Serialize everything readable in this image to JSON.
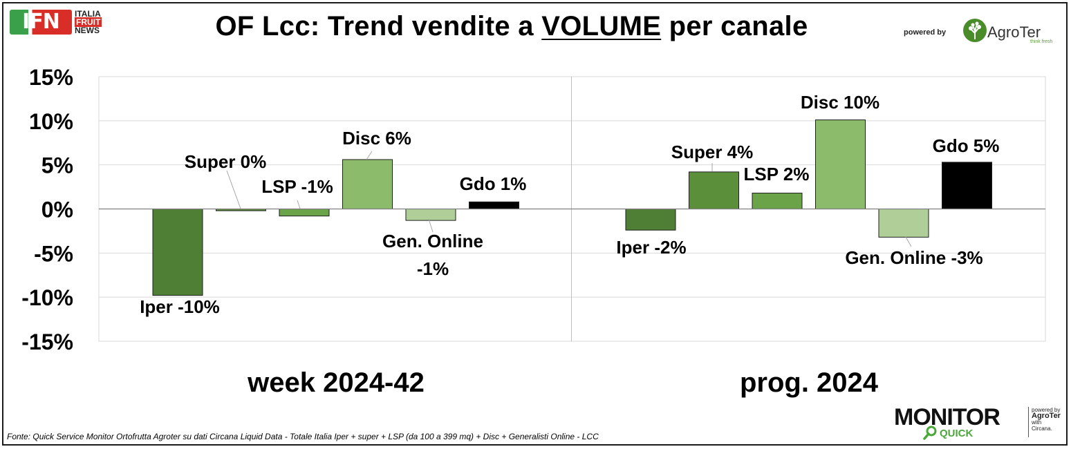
{
  "header": {
    "title_pre": "OF Lcc: Trend vendite a ",
    "title_emph": "VOLUME",
    "title_post": " per canale",
    "publisher_logo_text": "IFN",
    "publisher_lines": [
      "ITALIA",
      "FRUIT",
      "NEWS"
    ],
    "powered_by": "powered by",
    "sponsor_name": "AgroTer",
    "sponsor_tagline": "think fresh"
  },
  "footer": {
    "source": "Fonte: Quick Service Monitor Ortofrutta Agroter su dati Circana Liquid Data - Totale Italia Iper + super + LSP (da 100 a 399 mq) + Disc + Generalisti Online - LCC",
    "monitor_word": "MONITOR",
    "monitor_sub": "QUICK",
    "monitor_side_lines": [
      "powered by",
      "AgroTer",
      "with",
      "Circana."
    ]
  },
  "chart_data": {
    "type": "bar",
    "ylim": [
      -15,
      15
    ],
    "yticks": [
      "15%",
      "10%",
      "5%",
      "0%",
      "-5%",
      "-10%",
      "-15%"
    ],
    "ytick_values": [
      15,
      10,
      5,
      0,
      -5,
      -10,
      -15
    ],
    "grid": true,
    "channels": [
      "Iper",
      "Super",
      "LSP",
      "Disc",
      "Gen. Online",
      "Gdo"
    ],
    "colors": {
      "Iper": "#4f7f35",
      "Super": "#5c8f3a",
      "LSP": "#6aa348",
      "Disc": "#8cbb6c",
      "Gen. Online": "#b0cf98",
      "Gdo": "#000000"
    },
    "groups": [
      {
        "name": "week 2024-42",
        "values": [
          -9.8,
          -0.2,
          -0.8,
          5.6,
          -1.3,
          0.8
        ],
        "labels": [
          "Iper -10%",
          "Super 0%",
          "LSP -1%",
          "Disc 6%",
          "Gen. Online\n-1%",
          "Gdo 1%"
        ]
      },
      {
        "name": "prog. 2024",
        "values": [
          -2.4,
          4.2,
          1.8,
          10.1,
          -3.2,
          5.3
        ],
        "labels": [
          "Iper -2%",
          "Super 4%",
          "LSP 2%",
          "Disc 10%",
          "Gen. Online -3%",
          "Gdo 5%"
        ]
      }
    ]
  }
}
